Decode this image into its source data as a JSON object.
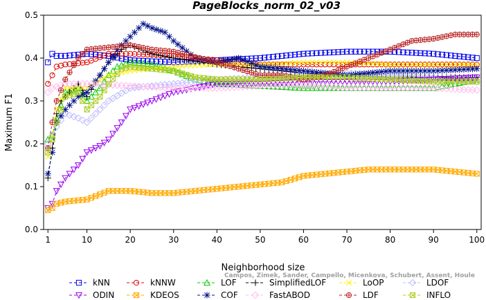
{
  "chart_data": {
    "type": "line",
    "title": "PageBlocks_norm_02_v03",
    "xlabel": "Neighborhood size",
    "ylabel": "Maximum F1",
    "xlim": [
      0,
      101
    ],
    "ylim": [
      0,
      0.5
    ],
    "x_ticks": [
      1,
      10,
      20,
      30,
      40,
      50,
      60,
      70,
      80,
      90,
      100
    ],
    "y_ticks": [
      "0.0",
      "0.1",
      "0.2",
      "0.3",
      "0.4",
      "0.5"
    ],
    "grid": false,
    "legend_position": "bottom",
    "watermark": "Campos, Zimek, Sander, Campello, Micenkova, Schubert, Assent, Houle",
    "series": [
      {
        "name": "kNN",
        "color": "#0000ee",
        "marker": "square",
        "dash": "dash",
        "points": [
          [
            1,
            0.39
          ],
          [
            2,
            0.41
          ],
          [
            3,
            0.405
          ],
          [
            5,
            0.405
          ],
          [
            10,
            0.41
          ],
          [
            15,
            0.405
          ],
          [
            20,
            0.395
          ],
          [
            30,
            0.39
          ],
          [
            40,
            0.395
          ],
          [
            50,
            0.4
          ],
          [
            60,
            0.41
          ],
          [
            70,
            0.415
          ],
          [
            80,
            0.415
          ],
          [
            90,
            0.41
          ],
          [
            100,
            0.4
          ]
        ]
      },
      {
        "name": "kNNW",
        "color": "#dd0000",
        "marker": "circle",
        "dash": "dash",
        "points": [
          [
            1,
            0.34
          ],
          [
            2,
            0.36
          ],
          [
            3,
            0.38
          ],
          [
            5,
            0.385
          ],
          [
            10,
            0.39
          ],
          [
            15,
            0.41
          ],
          [
            20,
            0.41
          ],
          [
            30,
            0.405
          ],
          [
            40,
            0.395
          ],
          [
            50,
            0.385
          ],
          [
            60,
            0.385
          ],
          [
            70,
            0.385
          ],
          [
            80,
            0.385
          ],
          [
            90,
            0.385
          ],
          [
            100,
            0.385
          ]
        ]
      },
      {
        "name": "LOF",
        "color": "#00cc00",
        "marker": "triangle-up",
        "dash": "dash",
        "points": [
          [
            1,
            0.21
          ],
          [
            2,
            0.22
          ],
          [
            3,
            0.26
          ],
          [
            5,
            0.32
          ],
          [
            8,
            0.33
          ],
          [
            10,
            0.3
          ],
          [
            13,
            0.33
          ],
          [
            15,
            0.36
          ],
          [
            17,
            0.38
          ],
          [
            20,
            0.39
          ],
          [
            25,
            0.385
          ],
          [
            30,
            0.37
          ],
          [
            35,
            0.35
          ],
          [
            40,
            0.34
          ],
          [
            50,
            0.335
          ],
          [
            60,
            0.33
          ],
          [
            70,
            0.33
          ],
          [
            80,
            0.33
          ],
          [
            90,
            0.33
          ],
          [
            100,
            0.35
          ]
        ]
      },
      {
        "name": "SimplifiedLOF",
        "color": "#000000",
        "marker": "plus",
        "dash": "dash",
        "points": [
          [
            1,
            0.12
          ],
          [
            2,
            0.19
          ],
          [
            3,
            0.27
          ],
          [
            4,
            0.3
          ],
          [
            5,
            0.31
          ],
          [
            8,
            0.34
          ],
          [
            10,
            0.31
          ],
          [
            13,
            0.36
          ],
          [
            15,
            0.39
          ],
          [
            18,
            0.42
          ],
          [
            20,
            0.43
          ],
          [
            25,
            0.41
          ],
          [
            30,
            0.4
          ],
          [
            40,
            0.385
          ],
          [
            50,
            0.375
          ],
          [
            60,
            0.365
          ],
          [
            70,
            0.36
          ],
          [
            80,
            0.355
          ],
          [
            90,
            0.355
          ],
          [
            100,
            0.355
          ]
        ]
      },
      {
        "name": "LoOP",
        "color": "#ffee00",
        "marker": "x",
        "dash": "dash",
        "points": [
          [
            1,
            0.17
          ],
          [
            2,
            0.22
          ],
          [
            3,
            0.28
          ],
          [
            5,
            0.33
          ],
          [
            10,
            0.33
          ],
          [
            15,
            0.36
          ],
          [
            20,
            0.37
          ],
          [
            30,
            0.38
          ],
          [
            40,
            0.385
          ],
          [
            50,
            0.385
          ],
          [
            60,
            0.39
          ],
          [
            70,
            0.39
          ],
          [
            80,
            0.385
          ],
          [
            90,
            0.385
          ],
          [
            100,
            0.385
          ]
        ]
      },
      {
        "name": "LDOF",
        "color": "#bbbbff",
        "marker": "diamond",
        "dash": "dash",
        "points": [
          [
            1,
            0.2
          ],
          [
            2,
            0.22
          ],
          [
            3,
            0.24
          ],
          [
            5,
            0.27
          ],
          [
            8,
            0.26
          ],
          [
            10,
            0.25
          ],
          [
            15,
            0.3
          ],
          [
            20,
            0.33
          ],
          [
            30,
            0.34
          ],
          [
            40,
            0.35
          ],
          [
            50,
            0.355
          ],
          [
            60,
            0.36
          ],
          [
            70,
            0.365
          ],
          [
            80,
            0.36
          ],
          [
            90,
            0.355
          ],
          [
            100,
            0.345
          ]
        ]
      },
      {
        "name": "ODIN",
        "color": "#9900ee",
        "marker": "triangle-down",
        "dash": "dash",
        "points": [
          [
            1,
            0.05
          ],
          [
            2,
            0.06
          ],
          [
            3,
            0.09
          ],
          [
            5,
            0.12
          ],
          [
            8,
            0.15
          ],
          [
            10,
            0.18
          ],
          [
            13,
            0.195
          ],
          [
            15,
            0.21
          ],
          [
            18,
            0.25
          ],
          [
            20,
            0.28
          ],
          [
            25,
            0.3
          ],
          [
            30,
            0.32
          ],
          [
            35,
            0.33
          ],
          [
            40,
            0.34
          ],
          [
            50,
            0.34
          ],
          [
            60,
            0.345
          ],
          [
            70,
            0.345
          ],
          [
            80,
            0.345
          ],
          [
            90,
            0.35
          ],
          [
            100,
            0.355
          ]
        ]
      },
      {
        "name": "KDEOS",
        "color": "#ffaa00",
        "marker": "square-x",
        "dash": "dash",
        "points": [
          [
            1,
            0.045
          ],
          [
            2,
            0.05
          ],
          [
            3,
            0.06
          ],
          [
            5,
            0.065
          ],
          [
            10,
            0.07
          ],
          [
            15,
            0.09
          ],
          [
            20,
            0.09
          ],
          [
            25,
            0.085
          ],
          [
            30,
            0.085
          ],
          [
            35,
            0.09
          ],
          [
            40,
            0.095
          ],
          [
            45,
            0.1
          ],
          [
            50,
            0.105
          ],
          [
            55,
            0.11
          ],
          [
            60,
            0.125
          ],
          [
            65,
            0.13
          ],
          [
            70,
            0.135
          ],
          [
            75,
            0.14
          ],
          [
            80,
            0.14
          ],
          [
            85,
            0.14
          ],
          [
            90,
            0.14
          ],
          [
            95,
            0.135
          ],
          [
            100,
            0.13
          ]
        ]
      },
      {
        "name": "COF",
        "color": "#001188",
        "marker": "asterisk",
        "dash": "dash",
        "points": [
          [
            1,
            0.13
          ],
          [
            2,
            0.18
          ],
          [
            3,
            0.25
          ],
          [
            5,
            0.28
          ],
          [
            8,
            0.31
          ],
          [
            10,
            0.32
          ],
          [
            13,
            0.36
          ],
          [
            15,
            0.39
          ],
          [
            17,
            0.42
          ],
          [
            20,
            0.45
          ],
          [
            23,
            0.48
          ],
          [
            25,
            0.47
          ],
          [
            28,
            0.46
          ],
          [
            30,
            0.44
          ],
          [
            35,
            0.4
          ],
          [
            40,
            0.39
          ],
          [
            45,
            0.4
          ],
          [
            50,
            0.38
          ],
          [
            60,
            0.37
          ],
          [
            70,
            0.36
          ],
          [
            80,
            0.37
          ],
          [
            90,
            0.37
          ],
          [
            100,
            0.375
          ]
        ]
      },
      {
        "name": "FastABOD",
        "color": "#ffbbee",
        "marker": "diamond",
        "dash": "dash",
        "points": [
          [
            1,
            0.32
          ],
          [
            2,
            0.33
          ],
          [
            5,
            0.34
          ],
          [
            10,
            0.34
          ],
          [
            20,
            0.335
          ],
          [
            30,
            0.33
          ],
          [
            40,
            0.33
          ],
          [
            50,
            0.335
          ],
          [
            60,
            0.335
          ],
          [
            70,
            0.33
          ],
          [
            80,
            0.33
          ],
          [
            90,
            0.33
          ],
          [
            100,
            0.325
          ]
        ]
      },
      {
        "name": "LDF",
        "color": "#bb2222",
        "marker": "circle-plus",
        "dash": "dash",
        "points": [
          [
            1,
            0.19
          ],
          [
            2,
            0.25
          ],
          [
            3,
            0.3
          ],
          [
            5,
            0.35
          ],
          [
            8,
            0.4
          ],
          [
            10,
            0.42
          ],
          [
            15,
            0.425
          ],
          [
            20,
            0.43
          ],
          [
            25,
            0.42
          ],
          [
            30,
            0.415
          ],
          [
            40,
            0.39
          ],
          [
            50,
            0.36
          ],
          [
            55,
            0.36
          ],
          [
            60,
            0.35
          ],
          [
            65,
            0.36
          ],
          [
            70,
            0.38
          ],
          [
            75,
            0.4
          ],
          [
            80,
            0.42
          ],
          [
            85,
            0.44
          ],
          [
            90,
            0.445
          ],
          [
            95,
            0.455
          ],
          [
            100,
            0.455
          ]
        ]
      },
      {
        "name": "INFLO",
        "color": "#aacc22",
        "marker": "square-x",
        "dash": "dash",
        "points": [
          [
            1,
            0.18
          ],
          [
            2,
            0.21
          ],
          [
            3,
            0.25
          ],
          [
            5,
            0.31
          ],
          [
            8,
            0.32
          ],
          [
            10,
            0.28
          ],
          [
            13,
            0.31
          ],
          [
            15,
            0.34
          ],
          [
            18,
            0.375
          ],
          [
            20,
            0.38
          ],
          [
            25,
            0.375
          ],
          [
            30,
            0.37
          ],
          [
            35,
            0.355
          ],
          [
            40,
            0.35
          ],
          [
            50,
            0.35
          ],
          [
            60,
            0.355
          ],
          [
            70,
            0.355
          ],
          [
            80,
            0.35
          ],
          [
            90,
            0.345
          ],
          [
            100,
            0.345
          ]
        ]
      }
    ]
  }
}
